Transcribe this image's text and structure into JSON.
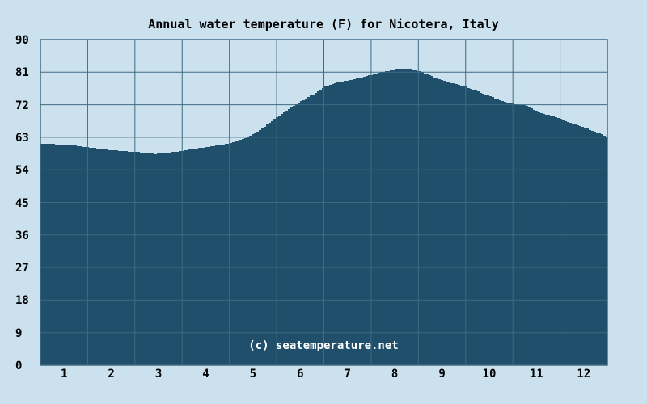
{
  "chart_data": {
    "type": "area",
    "title": "Annual water temperature (F) for Nicotera, Italy",
    "watermark": "(c) seatemperature.net",
    "units": "F",
    "categories": [
      "1",
      "2",
      "3",
      "4",
      "5",
      "6",
      "7",
      "8",
      "9",
      "10",
      "11",
      "12"
    ],
    "values": [
      60.8,
      59.2,
      58.8,
      60.4,
      64.6,
      73.0,
      78.8,
      81.6,
      78.6,
      74.3,
      70.1,
      65.6
    ],
    "ylim": [
      0,
      90
    ],
    "yticks": [
      0,
      9,
      18,
      27,
      36,
      45,
      54,
      63,
      72,
      81,
      90
    ],
    "grid": true,
    "legend": false,
    "curve_points": [
      [
        0.0,
        61.2
      ],
      [
        0.5,
        61.0
      ],
      [
        1.0,
        60.2
      ],
      [
        1.5,
        59.4
      ],
      [
        2.0,
        58.9
      ],
      [
        2.4,
        58.6
      ],
      [
        2.8,
        58.9
      ],
      [
        3.2,
        59.7
      ],
      [
        3.6,
        60.5
      ],
      [
        4.0,
        61.4
      ],
      [
        4.25,
        62.4
      ],
      [
        4.5,
        64.0
      ],
      [
        4.75,
        66.2
      ],
      [
        5.0,
        68.8
      ],
      [
        5.25,
        70.9
      ],
      [
        5.5,
        73.0
      ],
      [
        5.75,
        74.9
      ],
      [
        6.0,
        77.0
      ],
      [
        6.25,
        78.2
      ],
      [
        6.5,
        78.7
      ],
      [
        6.75,
        79.5
      ],
      [
        7.0,
        80.3
      ],
      [
        7.25,
        81.2
      ],
      [
        7.5,
        81.7
      ],
      [
        7.75,
        81.8
      ],
      [
        8.0,
        81.3
      ],
      [
        8.25,
        80.0
      ],
      [
        8.5,
        78.6
      ],
      [
        8.75,
        77.8
      ],
      [
        9.0,
        76.9
      ],
      [
        9.25,
        75.6
      ],
      [
        9.5,
        74.3
      ],
      [
        9.75,
        73.1
      ],
      [
        10.0,
        72.1
      ],
      [
        10.25,
        71.9
      ],
      [
        10.5,
        70.1
      ],
      [
        11.0,
        68.0
      ],
      [
        11.5,
        65.6
      ],
      [
        12.0,
        63.1
      ]
    ],
    "colors": {
      "background": "#cbe1ee",
      "fill": "#204f6b",
      "grid": "#3f6a84",
      "text": "#000000",
      "watermark": "#ffffff"
    }
  }
}
